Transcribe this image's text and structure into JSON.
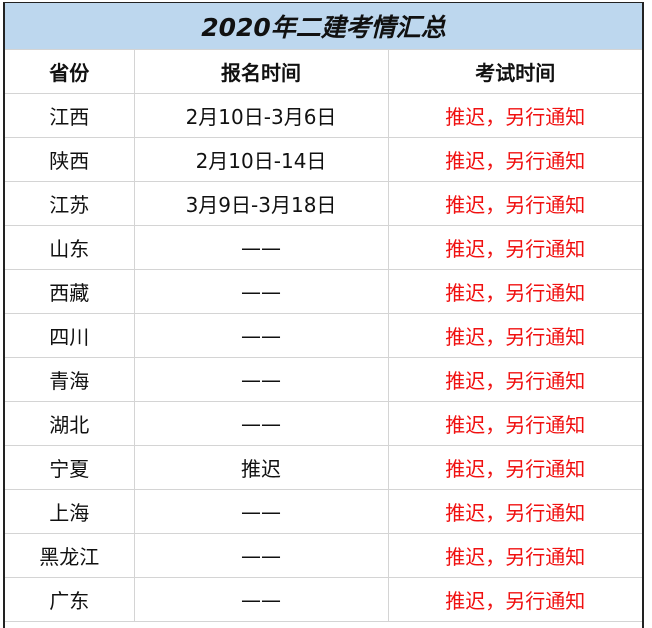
{
  "title": "2020年二建考情汇总",
  "headers": [
    "省份",
    "报名时间",
    "考试时间"
  ],
  "rows": [
    {
      "province": "江西",
      "registration": "2月10日-3月6日",
      "exam": "推迟，另行通知"
    },
    {
      "province": "陕西",
      "registration": "2月10日-14日",
      "exam": "推迟，另行通知"
    },
    {
      "province": "江苏",
      "registration": "3月9日-3月18日",
      "exam": "推迟，另行通知"
    },
    {
      "province": "山东",
      "registration": "——",
      "exam": "推迟，另行通知"
    },
    {
      "province": "西藏",
      "registration": "——",
      "exam": "推迟，另行通知"
    },
    {
      "province": "四川",
      "registration": "——",
      "exam": "推迟，另行通知"
    },
    {
      "province": "青海",
      "registration": "——",
      "exam": "推迟，另行通知"
    },
    {
      "province": "湖北",
      "registration": "——",
      "exam": "推迟，另行通知"
    },
    {
      "province": "宁夏",
      "registration": "推迟",
      "exam": "推迟，另行通知"
    },
    {
      "province": "上海",
      "registration": "——",
      "exam": "推迟，另行通知"
    },
    {
      "province": "黑龙江",
      "registration": "——",
      "exam": "推迟，另行通知"
    },
    {
      "province": "广东",
      "registration": "——",
      "exam": "推迟，另行通知"
    }
  ],
  "colors": {
    "title_bg": "#bdd7ee",
    "exam_text": "#f01010"
  }
}
